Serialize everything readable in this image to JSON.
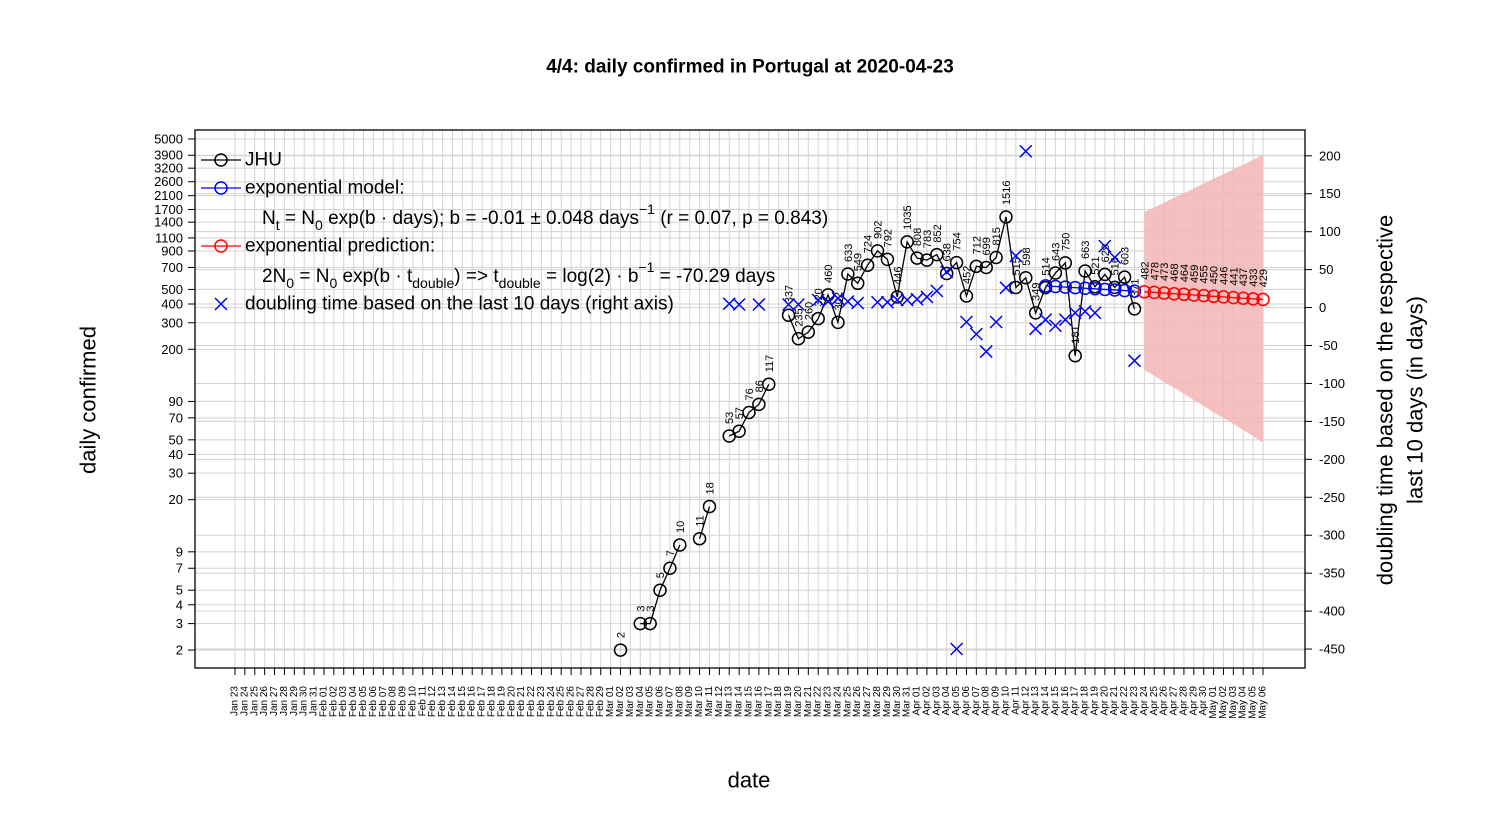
{
  "chart_data": {
    "type": "line",
    "title": "4/4: daily confirmed in Portugal at 2020-04-23",
    "x_label": "date",
    "y_label": "daily confirmed",
    "y2_label": [
      "doubling time based on the respective",
      "last 10 days (in days)"
    ],
    "ylog": true,
    "grid": true,
    "legend_position": "top-left",
    "ylim": [
      1.52,
      5740
    ],
    "yticks": [
      2,
      3,
      4,
      5,
      7,
      9,
      20,
      30,
      40,
      50,
      70,
      90,
      200,
      300,
      400,
      500,
      700,
      900,
      1100,
      1400,
      1700,
      2100,
      2600,
      3200,
      3900,
      5000
    ],
    "y2lim": [
      -475,
      234
    ],
    "y2ticks": [
      200,
      150,
      100,
      50,
      0,
      -50,
      -100,
      -150,
      -200,
      -250,
      -300,
      -350,
      -400,
      -450
    ],
    "categories": [
      "Jan 23",
      "Jan 24",
      "Jan 25",
      "Jan 26",
      "Jan 27",
      "Jan 28",
      "Jan 29",
      "Jan 30",
      "Jan 31",
      "Feb 01",
      "Feb 02",
      "Feb 03",
      "Feb 04",
      "Feb 05",
      "Feb 06",
      "Feb 07",
      "Feb 08",
      "Feb 09",
      "Feb 10",
      "Feb 11",
      "Feb 12",
      "Feb 13",
      "Feb 14",
      "Feb 15",
      "Feb 16",
      "Feb 17",
      "Feb 18",
      "Feb 19",
      "Feb 20",
      "Feb 21",
      "Feb 22",
      "Feb 23",
      "Feb 24",
      "Feb 25",
      "Feb 26",
      "Feb 27",
      "Feb 28",
      "Feb 29",
      "Mar 01",
      "Mar 02",
      "Mar 03",
      "Mar 04",
      "Mar 05",
      "Mar 06",
      "Mar 07",
      "Mar 08",
      "Mar 09",
      "Mar 10",
      "Mar 11",
      "Mar 12",
      "Mar 13",
      "Mar 14",
      "Mar 15",
      "Mar 16",
      "Mar 17",
      "Mar 18",
      "Mar 19",
      "Mar 20",
      "Mar 21",
      "Mar 22",
      "Mar 23",
      "Mar 24",
      "Mar 25",
      "Mar 26",
      "Mar 27",
      "Mar 28",
      "Mar 29",
      "Mar 30",
      "Mar 31",
      "Apr 01",
      "Apr 02",
      "Apr 03",
      "Apr 04",
      "Apr 05",
      "Apr 06",
      "Apr 07",
      "Apr 08",
      "Apr 09",
      "Apr 10",
      "Apr 11",
      "Apr 12",
      "Apr 13",
      "Apr 14",
      "Apr 15",
      "Apr 16",
      "Apr 17",
      "Apr 18",
      "Apr 19",
      "Apr 20",
      "Apr 21",
      "Apr 22",
      "Apr 23",
      "Apr 24",
      "Apr 25",
      "Apr 26",
      "Apr 27",
      "Apr 28",
      "Apr 29",
      "Apr 30",
      "May 01",
      "May 02",
      "May 03",
      "May 04",
      "May 05",
      "May 06"
    ],
    "series": [
      {
        "name": "JHU",
        "color": "#000000",
        "marker": "circle",
        "line": true,
        "labels": true,
        "values": [
          null,
          null,
          null,
          null,
          null,
          null,
          null,
          null,
          null,
          null,
          null,
          null,
          null,
          null,
          null,
          null,
          null,
          null,
          null,
          null,
          null,
          null,
          null,
          null,
          null,
          null,
          null,
          null,
          null,
          null,
          null,
          null,
          null,
          null,
          null,
          null,
          null,
          null,
          null,
          2,
          null,
          3,
          3,
          5,
          7,
          10,
          null,
          11,
          18,
          null,
          53,
          57,
          76,
          86,
          117,
          null,
          337,
          235,
          260,
          320,
          460,
          302,
          633,
          549,
          724,
          902,
          792,
          446,
          1035,
          808,
          783,
          852,
          638,
          754,
          452,
          712,
          699,
          815,
          1516,
          515,
          598,
          349,
          514,
          643,
          750,
          181,
          663,
          521,
          629,
          516,
          603,
          371,
          null,
          null,
          null,
          null,
          null,
          null,
          null,
          null,
          null,
          null,
          null,
          null,
          null
        ]
      },
      {
        "name": "exponential model:",
        "color": "#0000ff",
        "marker": "circle",
        "line": true,
        "labels": false,
        "note": [
          {
            "text": "N"
          },
          {
            "text": "t",
            "shift": "sub"
          },
          {
            "text": " = N"
          },
          {
            "text": "0",
            "shift": "sub"
          },
          {
            "text": " exp(b · days); b = -0.01 ± 0.048 days"
          },
          {
            "text": "−1",
            "shift": "super"
          },
          {
            "text": " (r = 0.07, p = 0.843)"
          }
        ],
        "values": [
          null,
          null,
          null,
          null,
          null,
          null,
          null,
          null,
          null,
          null,
          null,
          null,
          null,
          null,
          null,
          null,
          null,
          null,
          null,
          null,
          null,
          null,
          null,
          null,
          null,
          null,
          null,
          null,
          null,
          null,
          null,
          null,
          null,
          null,
          null,
          null,
          null,
          null,
          null,
          null,
          null,
          null,
          null,
          null,
          null,
          null,
          null,
          null,
          null,
          null,
          null,
          null,
          null,
          null,
          null,
          null,
          null,
          null,
          null,
          null,
          null,
          null,
          null,
          null,
          null,
          null,
          null,
          null,
          null,
          null,
          null,
          null,
          null,
          null,
          null,
          null,
          null,
          null,
          null,
          null,
          null,
          null,
          528,
          523,
          518,
          514,
          509,
          505,
          500,
          496,
          491,
          487,
          null,
          null,
          null,
          null,
          null,
          null,
          null,
          null,
          null,
          null,
          null,
          null,
          null
        ]
      },
      {
        "name": "exponential prediction:",
        "color": "#ff0000",
        "marker": "circle",
        "line": true,
        "labels": true,
        "note": [
          {
            "text": "2N"
          },
          {
            "text": "0",
            "shift": "sub"
          },
          {
            "text": " = N"
          },
          {
            "text": "0",
            "shift": "sub"
          },
          {
            "text": " exp(b · t"
          },
          {
            "text": "double",
            "shift": "sub"
          },
          {
            "text": ") => t"
          },
          {
            "text": "double",
            "shift": "sub"
          },
          {
            "text": " = log(2) · b"
          },
          {
            "text": "−1",
            "shift": "super"
          },
          {
            "text": " = -70.29 days"
          }
        ],
        "values": [
          null,
          null,
          null,
          null,
          null,
          null,
          null,
          null,
          null,
          null,
          null,
          null,
          null,
          null,
          null,
          null,
          null,
          null,
          null,
          null,
          null,
          null,
          null,
          null,
          null,
          null,
          null,
          null,
          null,
          null,
          null,
          null,
          null,
          null,
          null,
          null,
          null,
          null,
          null,
          null,
          null,
          null,
          null,
          null,
          null,
          null,
          null,
          null,
          null,
          null,
          null,
          null,
          null,
          null,
          null,
          null,
          null,
          null,
          null,
          null,
          null,
          null,
          null,
          null,
          null,
          null,
          null,
          null,
          null,
          null,
          null,
          null,
          null,
          null,
          null,
          null,
          null,
          null,
          null,
          null,
          null,
          null,
          null,
          null,
          null,
          null,
          null,
          null,
          null,
          null,
          null,
          null,
          482,
          478,
          473,
          468,
          464,
          459,
          455,
          450,
          446,
          441,
          437,
          433,
          429
        ]
      },
      {
        "name": "doubling time based on the last  10  days (right axis)",
        "color": "#0000ff",
        "marker": "x",
        "line": false,
        "labels": false,
        "axis": "y2",
        "values": [
          null,
          null,
          null,
          null,
          null,
          null,
          null,
          null,
          null,
          null,
          null,
          null,
          null,
          null,
          null,
          null,
          null,
          null,
          null,
          null,
          null,
          null,
          null,
          null,
          null,
          null,
          null,
          null,
          null,
          null,
          null,
          null,
          null,
          null,
          null,
          null,
          null,
          null,
          null,
          null,
          null,
          null,
          null,
          null,
          null,
          null,
          null,
          null,
          null,
          null,
          5,
          4,
          null,
          4,
          null,
          null,
          4,
          4,
          null,
          10,
          8,
          12,
          8,
          6,
          null,
          7,
          7,
          10,
          10,
          11,
          14,
          22,
          47,
          -450,
          -19,
          -35,
          -58,
          -19,
          26,
          68,
          206,
          -28,
          -16,
          -24,
          -16,
          -7,
          -5,
          -7,
          81,
          66,
          null,
          -70,
          null,
          null,
          null,
          null,
          null,
          null,
          null,
          null,
          null,
          null,
          null,
          null,
          null
        ]
      }
    ],
    "band": {
      "color": "#f5b5b5",
      "upper": [
        null,
        null,
        null,
        null,
        null,
        null,
        null,
        null,
        null,
        null,
        null,
        null,
        null,
        null,
        null,
        null,
        null,
        null,
        null,
        null,
        null,
        null,
        null,
        null,
        null,
        null,
        null,
        null,
        null,
        null,
        null,
        null,
        null,
        null,
        null,
        null,
        null,
        null,
        null,
        null,
        null,
        null,
        null,
        null,
        null,
        null,
        null,
        null,
        null,
        null,
        null,
        null,
        null,
        null,
        null,
        null,
        null,
        null,
        null,
        null,
        null,
        null,
        null,
        null,
        null,
        null,
        null,
        null,
        null,
        null,
        null,
        null,
        null,
        null,
        null,
        null,
        null,
        null,
        null,
        null,
        null,
        null,
        null,
        null,
        null,
        null,
        null,
        null,
        null,
        null,
        null,
        null,
        1633,
        1756,
        1889,
        2031,
        2185,
        2350,
        2527,
        2718,
        2923,
        3144,
        3381,
        3636,
        3909
      ],
      "lower": [
        null,
        null,
        null,
        null,
        null,
        null,
        null,
        null,
        null,
        null,
        null,
        null,
        null,
        null,
        null,
        null,
        null,
        null,
        null,
        null,
        null,
        null,
        null,
        null,
        null,
        null,
        null,
        null,
        null,
        null,
        null,
        null,
        null,
        null,
        null,
        null,
        null,
        null,
        null,
        null,
        null,
        null,
        null,
        null,
        null,
        null,
        null,
        null,
        null,
        null,
        null,
        null,
        null,
        null,
        null,
        null,
        null,
        null,
        null,
        null,
        null,
        null,
        null,
        null,
        null,
        null,
        null,
        null,
        null,
        null,
        null,
        null,
        null,
        null,
        null,
        null,
        null,
        null,
        null,
        null,
        null,
        null,
        null,
        null,
        null,
        null,
        null,
        null,
        null,
        null,
        null,
        null,
        146,
        133,
        121,
        111,
        101,
        92,
        84,
        76,
        70,
        64,
        58,
        53,
        48
      ]
    }
  }
}
